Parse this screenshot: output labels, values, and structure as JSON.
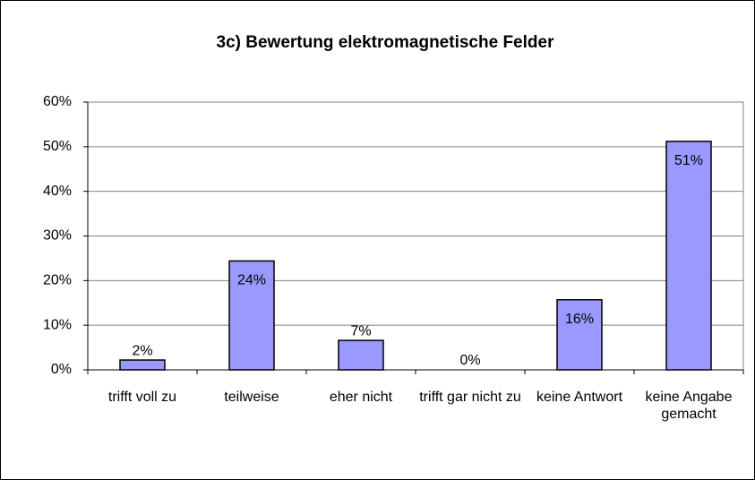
{
  "chart_data": {
    "type": "bar",
    "title": "3c) Bewertung elektromagnetische Felder",
    "categories": [
      "trifft voll zu",
      "teilweise",
      "eher nicht",
      "trifft gar nicht zu",
      "keine Antwort",
      "keine Angabe gemacht"
    ],
    "values": [
      2.2,
      24.4,
      6.6,
      0,
      15.7,
      51.2
    ],
    "value_labels": [
      "2%",
      "24%",
      "7%",
      "0%",
      "16%",
      "51%"
    ],
    "color": "#9999ff",
    "ylim": [
      0,
      60
    ],
    "yticks": [
      {
        "value": 0,
        "label": "0%"
      },
      {
        "value": 10,
        "label": "10%"
      },
      {
        "value": 20,
        "label": "20%"
      },
      {
        "value": 30,
        "label": "30%"
      },
      {
        "value": 40,
        "label": "40%"
      },
      {
        "value": 50,
        "label": "50%"
      },
      {
        "value": 60,
        "label": "60%"
      }
    ],
    "grid": true
  }
}
